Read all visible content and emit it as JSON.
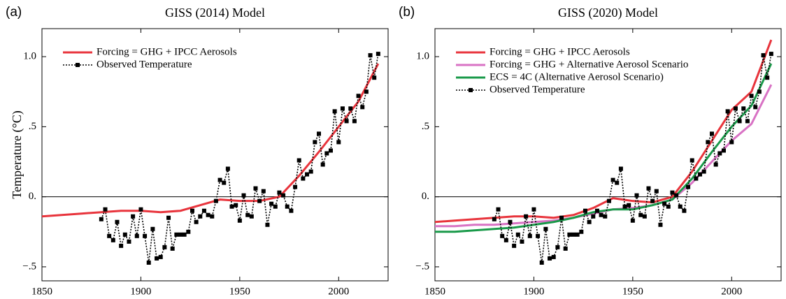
{
  "chart_data": [
    {
      "type": "line",
      "panel_label": "(a)",
      "title": "GISS (2014) Model",
      "y_label": "Temperature (°C)",
      "xlim": [
        1850,
        2025
      ],
      "xticks": [
        1850,
        1900,
        1950,
        2000
      ],
      "ylim": [
        -0.6,
        1.2
      ],
      "yticks": [
        {
          "value": -0.5,
          "label": "−.5"
        },
        {
          "value": 0,
          "label": "0."
        },
        {
          "value": 0.5,
          "label": ".5"
        },
        {
          "value": 1.0,
          "label": "1.0"
        }
      ],
      "zero_line": true,
      "legend": "upper left",
      "series": [
        {
          "name": "Forcing = GHG + IPCC Aerosols",
          "color": "#e8343c",
          "style": "solid",
          "x": [
            1850,
            1860,
            1870,
            1880,
            1890,
            1900,
            1910,
            1920,
            1930,
            1940,
            1950,
            1960,
            1970,
            1980,
            1990,
            2000,
            2010,
            2020
          ],
          "values": [
            -0.14,
            -0.13,
            -0.12,
            -0.11,
            -0.1,
            -0.1,
            -0.11,
            -0.1,
            -0.06,
            -0.02,
            -0.03,
            -0.03,
            0.0,
            0.15,
            0.32,
            0.5,
            0.68,
            0.95
          ]
        },
        {
          "name": "Observed Temperature",
          "color": "#000000",
          "style": "dotted-square",
          "x": [
            1880,
            1882,
            1884,
            1886,
            1888,
            1890,
            1892,
            1894,
            1896,
            1898,
            1900,
            1902,
            1904,
            1906,
            1908,
            1910,
            1912,
            1914,
            1916,
            1918,
            1920,
            1922,
            1924,
            1926,
            1928,
            1930,
            1932,
            1934,
            1936,
            1938,
            1940,
            1942,
            1944,
            1946,
            1948,
            1950,
            1952,
            1954,
            1956,
            1958,
            1960,
            1962,
            1964,
            1966,
            1968,
            1970,
            1972,
            1974,
            1976,
            1978,
            1980,
            1982,
            1984,
            1986,
            1988,
            1990,
            1992,
            1994,
            1996,
            1998,
            2000,
            2002,
            2004,
            2006,
            2008,
            2010,
            2012,
            2014,
            2016,
            2018,
            2020
          ],
          "values": [
            -0.16,
            -0.09,
            -0.28,
            -0.31,
            -0.18,
            -0.35,
            -0.27,
            -0.32,
            -0.14,
            -0.28,
            -0.09,
            -0.28,
            -0.47,
            -0.23,
            -0.44,
            -0.43,
            -0.36,
            -0.15,
            -0.37,
            -0.27,
            -0.27,
            -0.27,
            -0.25,
            -0.1,
            -0.18,
            -0.14,
            -0.1,
            -0.13,
            -0.14,
            -0.03,
            0.12,
            0.1,
            0.2,
            -0.07,
            -0.06,
            -0.17,
            0.01,
            -0.13,
            -0.14,
            0.06,
            -0.03,
            0.04,
            -0.2,
            -0.05,
            -0.07,
            0.03,
            0.01,
            -0.07,
            -0.1,
            0.07,
            0.26,
            0.13,
            0.16,
            0.18,
            0.39,
            0.45,
            0.23,
            0.31,
            0.33,
            0.61,
            0.39,
            0.63,
            0.54,
            0.63,
            0.54,
            0.72,
            0.64,
            0.75,
            1.01,
            0.85,
            1.02
          ]
        }
      ]
    },
    {
      "type": "line",
      "panel_label": "(b)",
      "title": "GISS (2020) Model",
      "xlim": [
        1850,
        2025
      ],
      "xticks": [
        1850,
        1900,
        1950,
        2000
      ],
      "ylim": [
        -0.6,
        1.2
      ],
      "yticks": [
        {
          "value": -0.5,
          "label": "−.5"
        },
        {
          "value": 0,
          "label": "0."
        },
        {
          "value": 0.5,
          "label": ".5"
        },
        {
          "value": 1.0,
          "label": "1.0"
        }
      ],
      "zero_line": true,
      "legend": "upper left",
      "series": [
        {
          "name": "Forcing = GHG + IPCC Aerosols",
          "color": "#e8343c",
          "style": "solid",
          "x": [
            1850,
            1860,
            1870,
            1880,
            1890,
            1900,
            1910,
            1920,
            1930,
            1940,
            1950,
            1960,
            1970,
            1980,
            1990,
            2000,
            2010,
            2020
          ],
          "values": [
            -0.18,
            -0.17,
            -0.16,
            -0.15,
            -0.14,
            -0.14,
            -0.15,
            -0.13,
            -0.08,
            -0.01,
            -0.03,
            -0.04,
            0.0,
            0.18,
            0.4,
            0.62,
            0.75,
            1.12
          ]
        },
        {
          "name": "Forcing = GHG + Alternative Aerosol Scenario",
          "color": "#d872c4",
          "style": "solid",
          "x": [
            1850,
            1860,
            1870,
            1880,
            1890,
            1900,
            1910,
            1920,
            1930,
            1940,
            1950,
            1960,
            1970,
            1980,
            1990,
            2000,
            2010,
            2020
          ],
          "values": [
            -0.21,
            -0.21,
            -0.2,
            -0.2,
            -0.19,
            -0.18,
            -0.17,
            -0.15,
            -0.12,
            -0.09,
            -0.08,
            -0.06,
            -0.02,
            0.1,
            0.25,
            0.4,
            0.52,
            0.8
          ]
        },
        {
          "name": "ECS = 4C (Alternative Aerosol Scenario)",
          "color": "#1a9a4a",
          "style": "solid",
          "x": [
            1850,
            1860,
            1870,
            1880,
            1890,
            1900,
            1910,
            1920,
            1930,
            1940,
            1950,
            1960,
            1970,
            1980,
            1990,
            2000,
            2010,
            2020
          ],
          "values": [
            -0.25,
            -0.25,
            -0.24,
            -0.23,
            -0.22,
            -0.2,
            -0.18,
            -0.15,
            -0.11,
            -0.09,
            -0.09,
            -0.06,
            -0.02,
            0.13,
            0.32,
            0.5,
            0.65,
            0.95
          ]
        },
        {
          "name": "Observed Temperature",
          "color": "#000000",
          "style": "dotted-square",
          "x": [
            1880,
            1882,
            1884,
            1886,
            1888,
            1890,
            1892,
            1894,
            1896,
            1898,
            1900,
            1902,
            1904,
            1906,
            1908,
            1910,
            1912,
            1914,
            1916,
            1918,
            1920,
            1922,
            1924,
            1926,
            1928,
            1930,
            1932,
            1934,
            1936,
            1938,
            1940,
            1942,
            1944,
            1946,
            1948,
            1950,
            1952,
            1954,
            1956,
            1958,
            1960,
            1962,
            1964,
            1966,
            1968,
            1970,
            1972,
            1974,
            1976,
            1978,
            1980,
            1982,
            1984,
            1986,
            1988,
            1990,
            1992,
            1994,
            1996,
            1998,
            2000,
            2002,
            2004,
            2006,
            2008,
            2010,
            2012,
            2014,
            2016,
            2018,
            2020
          ],
          "values": [
            -0.16,
            -0.09,
            -0.28,
            -0.31,
            -0.18,
            -0.35,
            -0.27,
            -0.32,
            -0.14,
            -0.28,
            -0.09,
            -0.28,
            -0.47,
            -0.23,
            -0.44,
            -0.43,
            -0.36,
            -0.15,
            -0.37,
            -0.27,
            -0.27,
            -0.27,
            -0.25,
            -0.1,
            -0.18,
            -0.14,
            -0.1,
            -0.13,
            -0.14,
            -0.03,
            0.12,
            0.1,
            0.2,
            -0.07,
            -0.06,
            -0.17,
            0.01,
            -0.13,
            -0.14,
            0.06,
            -0.03,
            0.04,
            -0.2,
            -0.05,
            -0.07,
            0.03,
            0.01,
            -0.07,
            -0.1,
            0.07,
            0.26,
            0.13,
            0.16,
            0.18,
            0.39,
            0.45,
            0.23,
            0.31,
            0.33,
            0.61,
            0.39,
            0.63,
            0.54,
            0.63,
            0.54,
            0.72,
            0.64,
            0.75,
            1.01,
            0.85,
            1.02
          ]
        }
      ]
    }
  ]
}
